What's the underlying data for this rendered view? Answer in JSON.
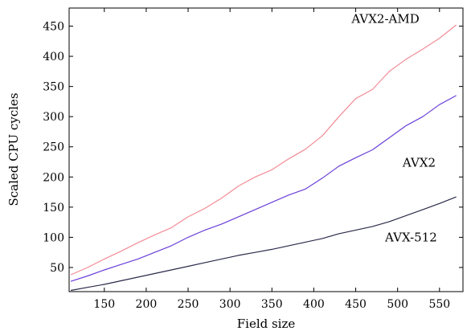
{
  "chart_data": {
    "type": "line",
    "xlabel": "Field size",
    "ylabel": "Scaled CPU cycles",
    "xlim": [
      108,
      578
    ],
    "ylim": [
      10,
      480
    ],
    "xticks": [
      150,
      200,
      250,
      300,
      350,
      400,
      450,
      500,
      550
    ],
    "yticks": [
      50,
      100,
      150,
      200,
      250,
      300,
      350,
      400,
      450
    ],
    "grid": false,
    "series": [
      {
        "name": "AVX2-AMD",
        "color": "#f28c96",
        "x": [
          110,
          130,
          150,
          170,
          190,
          210,
          230,
          250,
          270,
          290,
          310,
          330,
          350,
          370,
          390,
          410,
          430,
          450,
          470,
          490,
          510,
          530,
          550,
          570
        ],
        "y": [
          38,
          50,
          64,
          77,
          91,
          104,
          116,
          134,
          148,
          165,
          185,
          200,
          212,
          230,
          246,
          268,
          300,
          330,
          345,
          375,
          395,
          412,
          430,
          452
        ]
      },
      {
        "name": "AVX2",
        "color": "#6a3fd8",
        "x": [
          110,
          130,
          150,
          170,
          190,
          210,
          230,
          250,
          270,
          290,
          310,
          330,
          350,
          370,
          390,
          410,
          430,
          450,
          470,
          490,
          510,
          530,
          550,
          570
        ],
        "y": [
          27,
          36,
          46,
          55,
          64,
          75,
          86,
          100,
          112,
          122,
          134,
          146,
          158,
          170,
          180,
          198,
          218,
          232,
          245,
          265,
          285,
          300,
          320,
          335
        ]
      },
      {
        "name": "AVX-512",
        "color": "#2a2a4a",
        "x": [
          110,
          130,
          150,
          170,
          190,
          210,
          230,
          250,
          270,
          290,
          310,
          330,
          350,
          370,
          390,
          410,
          430,
          450,
          470,
          490,
          510,
          530,
          550,
          570
        ],
        "y": [
          12,
          17,
          22,
          28,
          34,
          40,
          46,
          52,
          58,
          64,
          70,
          75,
          80,
          86,
          92,
          98,
          106,
          112,
          118,
          126,
          136,
          146,
          156,
          167
        ]
      }
    ],
    "labels": [
      {
        "text": "AVX2-AMD",
        "x": 445,
        "y": 462
      },
      {
        "text": "AVX2",
        "x": 506,
        "y": 224
      },
      {
        "text": "AVX-512",
        "x": 485,
        "y": 100
      }
    ]
  }
}
